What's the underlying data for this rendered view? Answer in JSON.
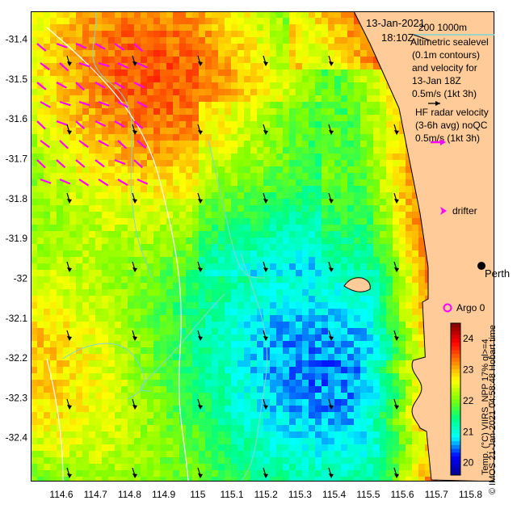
{
  "map": {
    "date": "13-Jan-2021",
    "time": "18:10Z",
    "bathymetry_legend": "200  1000m",
    "altimetry_text": [
      "Altimetric sealevel",
      "(0.1m contours)",
      "and velocity for",
      "13-Jan 18Z",
      "0.5m/s (1kt 3h)"
    ],
    "hf_radar_text": [
      "HF radar velocity",
      "(3-6h avg) noQC",
      "0.5m/s (1kt 3h)"
    ],
    "drifter_label": "drifter",
    "city_label": "Perth",
    "argo_label": "Argo 0",
    "credit": "© IMOS 21-Jan-2021 04:58:48 Hobart time",
    "colorbar_title": "Temp. (°C) VIIRS_NPP 17% ql>=4",
    "colors": {
      "land": "#ffcc99",
      "hf_arrow": "#ff00ff",
      "alt_arrow": "#000000",
      "contour": "#7fd6d6",
      "isobath": "#ffffff",
      "argo": "#ff00ff"
    }
  },
  "chart_data": {
    "type": "heatmap",
    "x_ticks": [
      "114.6",
      "114.7",
      "114.8",
      "114.9",
      "115",
      "115.1",
      "115.2",
      "115.3",
      "115.4",
      "115.5",
      "115.6",
      "115.7",
      "115.8"
    ],
    "y_ticks": [
      "-31.4",
      "-31.5",
      "-31.6",
      "-31.7",
      "-31.8",
      "-31.9",
      "-32",
      "-32.1",
      "-32.2",
      "-32.3",
      "-32.4"
    ],
    "xlim": [
      114.51,
      115.87
    ],
    "ylim": [
      -32.51,
      -31.33
    ],
    "colorbar_ticks": [
      "20",
      "21",
      "22",
      "23",
      "24"
    ],
    "colorbar_range": [
      19.6,
      24.5
    ],
    "colormap": [
      "#00008f",
      "#0000ff",
      "#00ffff",
      "#00ff80",
      "#80ff00",
      "#ffff00",
      "#ff8000",
      "#ff0000",
      "#800000"
    ]
  }
}
